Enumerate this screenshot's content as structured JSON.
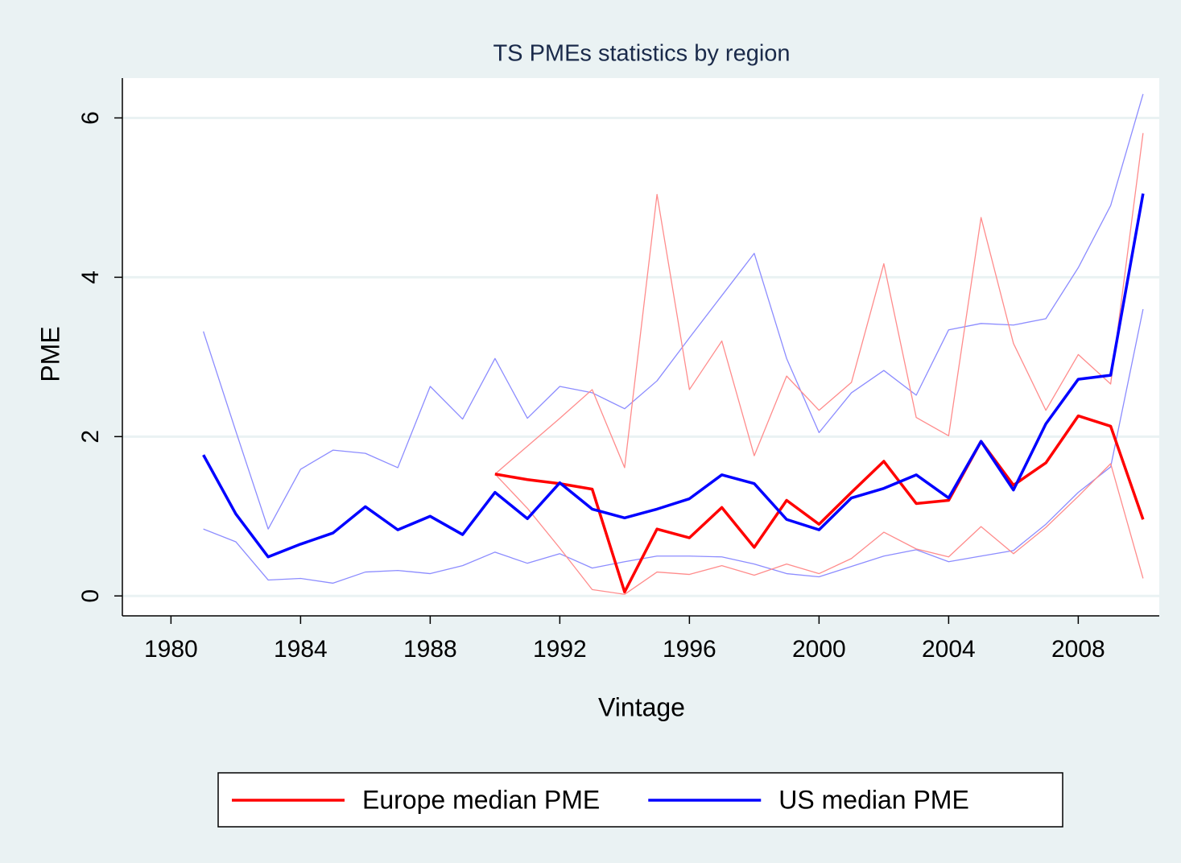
{
  "chart_data": {
    "type": "line",
    "title": "TS PMEs statistics by region",
    "xlabel": "Vintage",
    "ylabel": "PME",
    "x": [
      1981,
      1982,
      1983,
      1984,
      1985,
      1986,
      1987,
      1988,
      1989,
      1990,
      1991,
      1992,
      1993,
      1994,
      1995,
      1996,
      1997,
      1998,
      1999,
      2000,
      2001,
      2002,
      2003,
      2004,
      2005,
      2006,
      2007,
      2008,
      2009,
      2010
    ],
    "series": [
      {
        "color": "#8c8cff",
        "line_width": 1.3,
        "values": [
          3.32,
          2.07,
          0.84,
          1.59,
          1.83,
          1.79,
          1.61,
          2.63,
          2.22,
          2.98,
          2.23,
          2.63,
          2.55,
          2.35,
          2.7,
          3.24,
          3.77,
          4.3,
          2.98,
          2.05,
          2.55,
          2.83,
          2.52,
          3.34,
          3.42,
          3.4,
          3.48,
          4.12,
          4.9,
          6.3
        ]
      },
      {
        "color": "#8c8cff",
        "line_width": 1.3,
        "values": [
          0.84,
          0.68,
          0.2,
          0.22,
          0.16,
          0.3,
          0.32,
          0.28,
          0.38,
          0.55,
          0.41,
          0.53,
          0.35,
          0.43,
          0.5,
          0.5,
          0.49,
          0.4,
          0.28,
          0.24,
          0.37,
          0.5,
          0.58,
          0.43,
          0.5,
          0.57,
          0.9,
          1.3,
          1.62,
          3.6
        ]
      },
      {
        "color": "#ff8c8c",
        "line_width": 1.3,
        "values": [
          null,
          null,
          null,
          null,
          null,
          null,
          null,
          null,
          null,
          1.53,
          1.88,
          2.23,
          2.59,
          1.61,
          5.04,
          2.59,
          3.2,
          1.76,
          2.76,
          2.33,
          2.68,
          4.17,
          2.24,
          2.01,
          4.75,
          3.17,
          2.33,
          3.03,
          2.66,
          5.81
        ]
      },
      {
        "color": "#ff8c8c",
        "line_width": 1.3,
        "values": [
          null,
          null,
          null,
          null,
          null,
          null,
          null,
          null,
          null,
          1.53,
          1.1,
          0.6,
          0.08,
          0.02,
          0.3,
          0.27,
          0.38,
          0.26,
          0.4,
          0.28,
          0.47,
          0.8,
          0.59,
          0.49,
          0.87,
          0.53,
          0.86,
          1.25,
          1.66,
          0.22
        ]
      },
      {
        "name": "Europe median PME",
        "color": "#ff0000",
        "line_width": 3.5,
        "values": [
          null,
          null,
          null,
          null,
          null,
          null,
          null,
          null,
          null,
          1.53,
          1.46,
          1.41,
          1.34,
          0.05,
          0.84,
          0.73,
          1.11,
          0.61,
          1.2,
          0.9,
          1.3,
          1.69,
          1.16,
          1.2,
          1.94,
          1.39,
          1.67,
          2.26,
          2.13,
          0.96
        ]
      },
      {
        "name": "US median PME",
        "color": "#0000ff",
        "line_width": 3.5,
        "values": [
          1.77,
          1.03,
          0.49,
          0.65,
          0.79,
          1.12,
          0.83,
          1.0,
          0.77,
          1.3,
          0.97,
          1.42,
          1.09,
          0.98,
          1.09,
          1.22,
          1.52,
          1.41,
          0.96,
          0.83,
          1.23,
          1.35,
          1.52,
          1.23,
          1.94,
          1.33,
          2.16,
          2.72,
          2.77,
          5.05
        ]
      }
    ],
    "xlim": [
      1978.5,
      2010.5
    ],
    "xticks": [
      1980,
      1984,
      1988,
      1992,
      1996,
      2000,
      2004,
      2008
    ],
    "ylim": [
      -0.25,
      6.5
    ],
    "yticks": [
      0,
      2,
      4,
      6
    ],
    "grid": true,
    "legend": "bottom"
  }
}
